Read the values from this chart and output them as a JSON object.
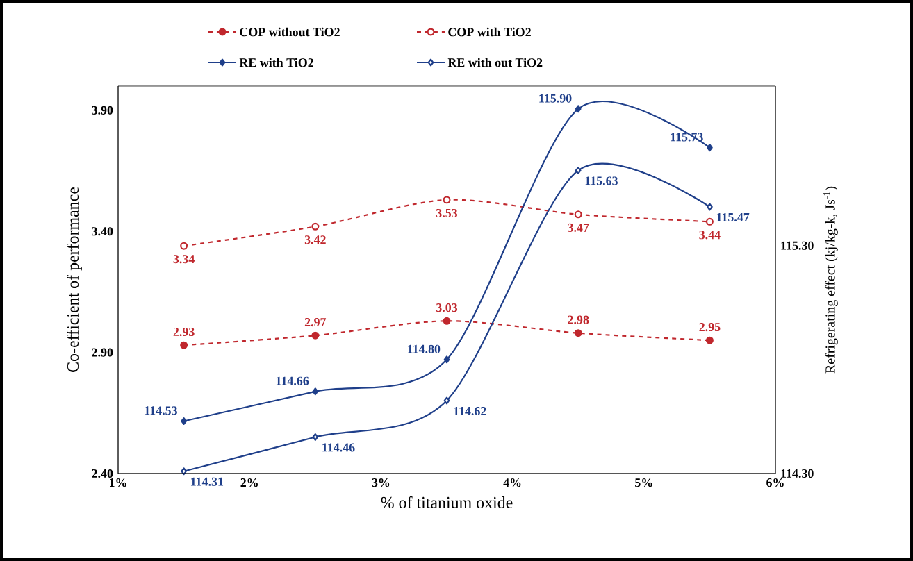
{
  "chart_data": {
    "type": "line",
    "xlabel": "% of titanium oxide",
    "ylabel": "Co-efficient of performance",
    "y2label": "Refrigerating effect (kj/kg-k, Js$^{-1}$)",
    "x": [
      1.5,
      2.5,
      3.5,
      4.5,
      5.5
    ],
    "xlim": [
      1,
      6
    ],
    "xticks": [
      {
        "value": 1,
        "label": "1%"
      },
      {
        "value": 2,
        "label": "2%"
      },
      {
        "value": 3,
        "label": "3%"
      },
      {
        "value": 4,
        "label": "4%"
      },
      {
        "value": 5,
        "label": "5%"
      },
      {
        "value": 6,
        "label": "6%"
      }
    ],
    "ylim": [
      2.4,
      4.0
    ],
    "yticks": [
      {
        "value": 2.4,
        "label": "2.40"
      },
      {
        "value": 2.9,
        "label": "2.90"
      },
      {
        "value": 3.4,
        "label": "3.40"
      },
      {
        "value": 3.9,
        "label": "3.90"
      }
    ],
    "y2lim": [
      114.3,
      116.0
    ],
    "y2ticks": [
      {
        "value": 114.3,
        "label": "114.30"
      },
      {
        "value": 115.3,
        "label": "115.30"
      }
    ],
    "series": [
      {
        "name": "COP without TiO2",
        "color": "#c0272d",
        "line_style": "dashed",
        "marker": "circle",
        "values": [
          2.93,
          2.97,
          3.03,
          2.98,
          2.95
        ],
        "value_labels": [
          "2.93",
          "2.97",
          "3.03",
          "2.98",
          "2.95"
        ]
      },
      {
        "name": "COP with TiO2",
        "color": "#c0272d",
        "line_style": "dashed",
        "marker": "circle",
        "values": [
          3.34,
          3.42,
          3.53,
          3.47,
          3.44
        ],
        "value_labels": [
          "3.34",
          "3.42",
          "3.53",
          "3.47",
          "3.44"
        ]
      },
      {
        "name": "RE with TiO2",
        "color": "#1f3f8a",
        "line_style": "solid",
        "marker": "diamond",
        "axis": "y2",
        "values": [
          114.53,
          114.66,
          114.8,
          115.9,
          115.73
        ],
        "value_labels": [
          "114.53",
          "114.66",
          "114.80",
          "115.90",
          "115.73"
        ]
      },
      {
        "name": "RE with out TiO2",
        "color": "#1f3f8a",
        "line_style": "solid",
        "marker": "diamond",
        "axis": "y2",
        "values": [
          114.31,
          114.46,
          114.62,
          115.63,
          115.47
        ],
        "value_labels": [
          "114.31",
          "114.46",
          "114.62",
          "115.63",
          "115.47"
        ]
      }
    ],
    "grid": false,
    "legend": "top"
  }
}
